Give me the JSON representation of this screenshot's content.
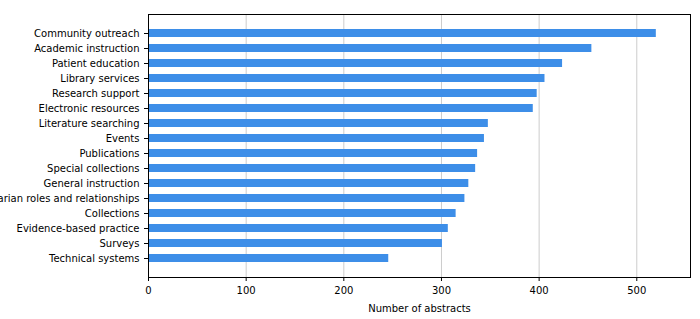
{
  "chart_data": {
    "type": "bar",
    "orientation": "horizontal",
    "x_label": "Number of abstracts",
    "categories": [
      "Community outreach",
      "Academic instruction",
      "Patient education",
      "Library services",
      "Research support",
      "Electronic resources",
      "Literature searching",
      "Events",
      "Publications",
      "Special collections",
      "General instruction",
      "Librarian roles and relationships",
      "Collections",
      "Evidence-based practice",
      "Surveys",
      "Technical systems"
    ],
    "values": [
      520,
      454,
      424,
      406,
      398,
      394,
      348,
      344,
      337,
      335,
      328,
      324,
      315,
      307,
      301,
      246
    ],
    "color": "#3d8ee8",
    "xlim": [
      0,
      555
    ],
    "xticks": [
      0,
      100,
      200,
      300,
      400,
      500
    ],
    "grid": true
  }
}
